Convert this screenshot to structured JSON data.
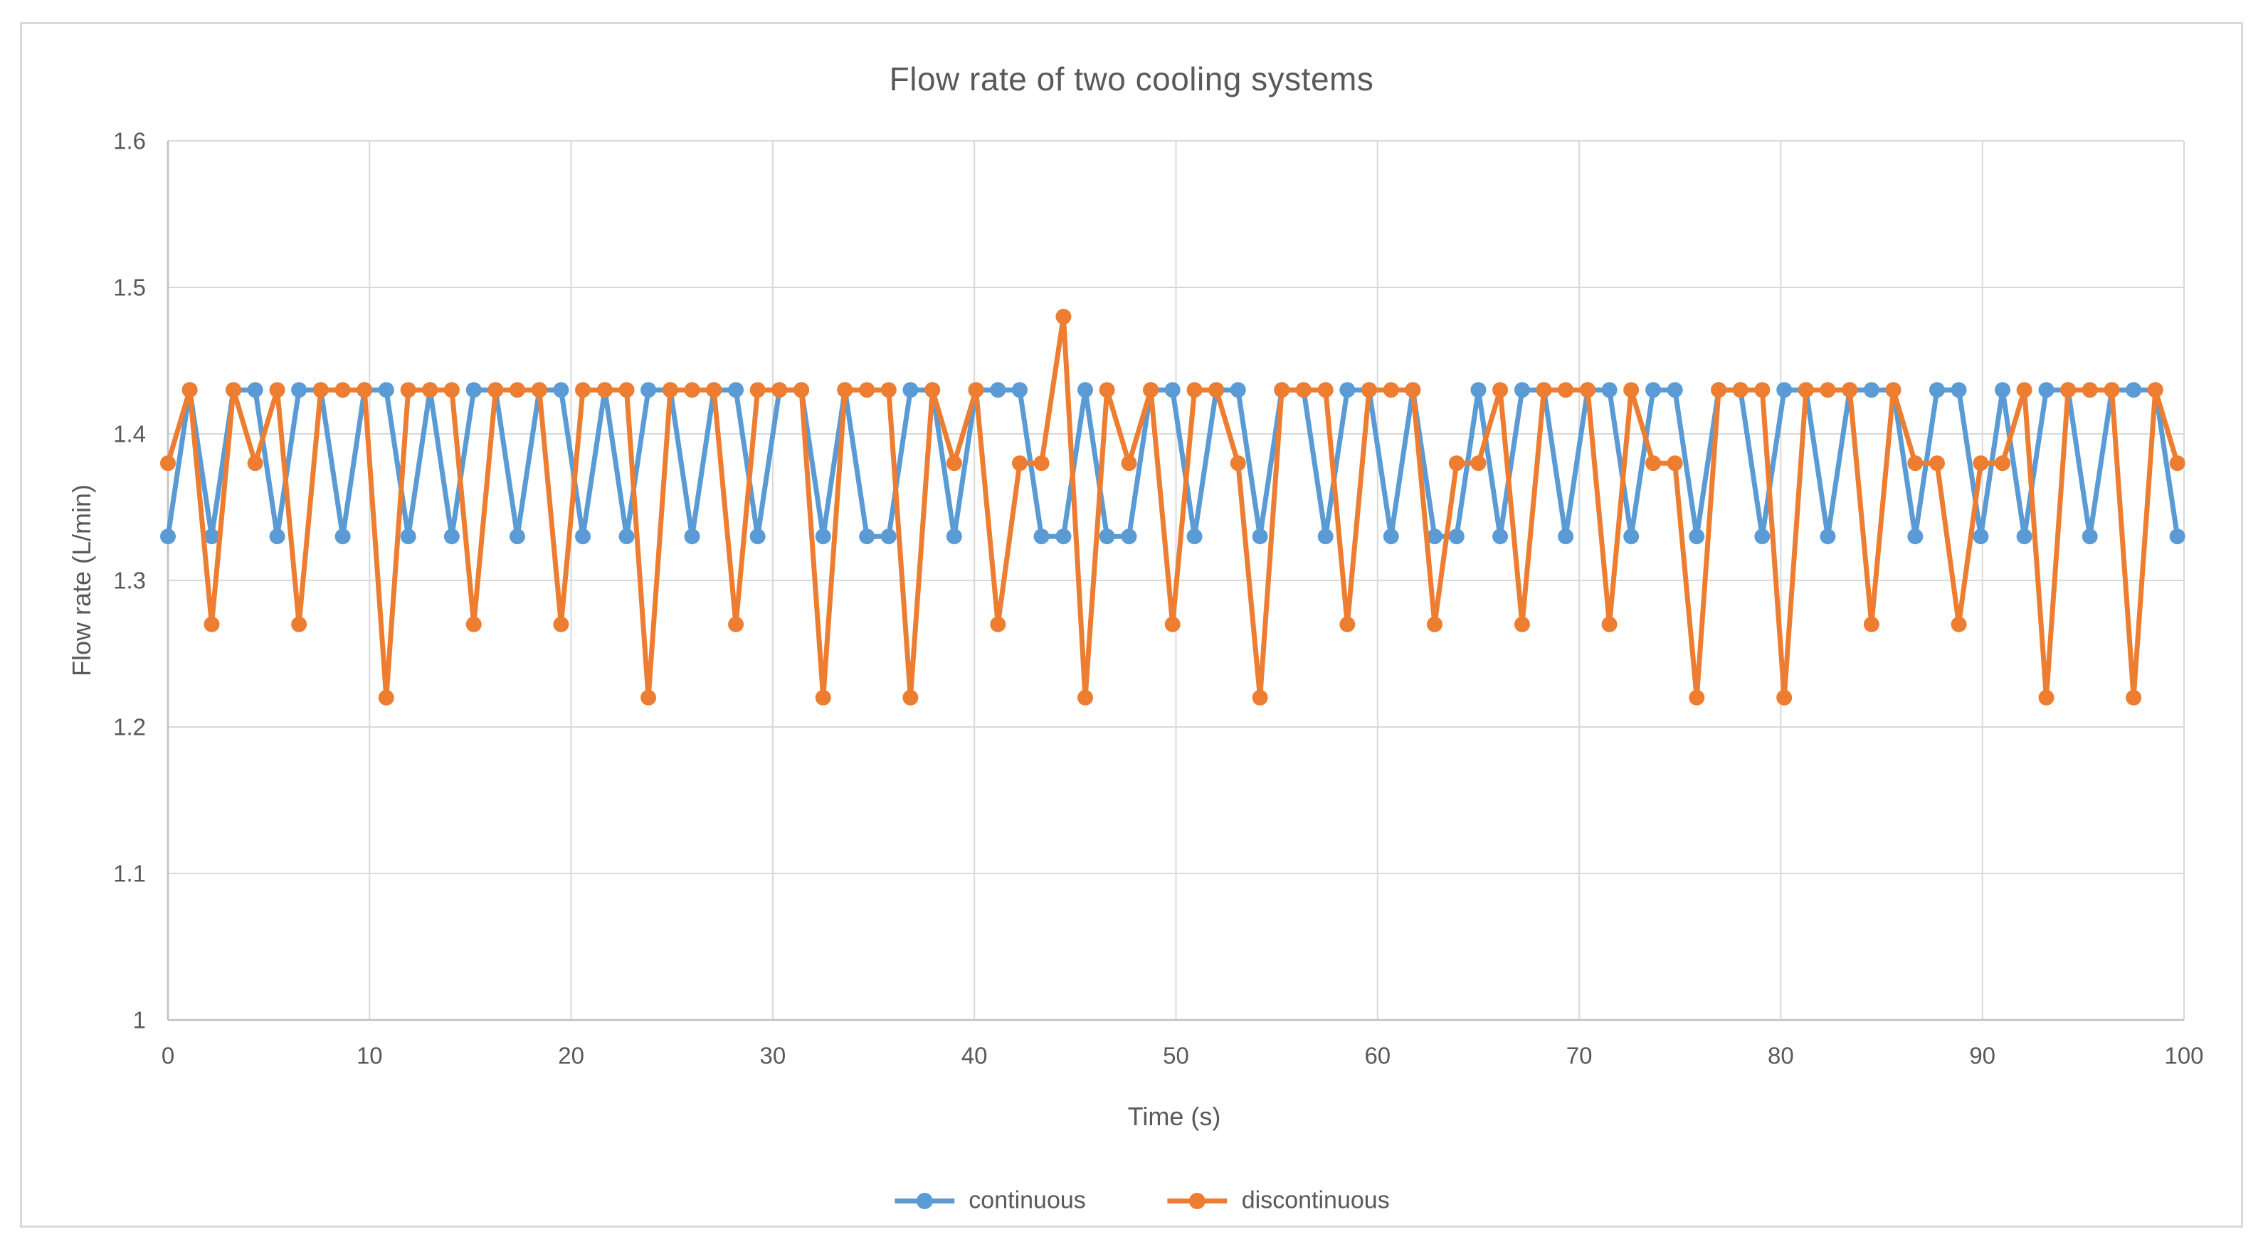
{
  "title": "Flow rate of two cooling systems",
  "colors": {
    "continuous": "#5B9BD5",
    "discontinuous": "#ED7D31",
    "text": "#595959",
    "gridline": "#D9D9D9",
    "axis": "#BFBFBF",
    "frame_border": "#D9D9D9",
    "background": "#FFFFFF"
  },
  "chart_data": {
    "type": "line",
    "title": "Flow rate of two cooling systems",
    "xlabel": "Time (s)",
    "ylabel": "Flow rate (L/min)",
    "xlim": [
      0,
      100
    ],
    "ylim": [
      1,
      1.6
    ],
    "x_ticks": [
      0,
      10,
      20,
      30,
      40,
      50,
      60,
      70,
      80,
      90,
      100
    ],
    "y_ticks": [
      1,
      1.1,
      1.2,
      1.3,
      1.4,
      1.5,
      1.6
    ],
    "y_tick_labels": [
      "1",
      "1.1",
      "1.2",
      "1.3",
      "1.4",
      "1.5",
      "1.6"
    ],
    "grid": true,
    "legend_position": "bottom",
    "marker": "circle",
    "sample_interval_s": 1.083,
    "x": [
      0,
      1.08,
      2.17,
      3.25,
      4.33,
      5.42,
      6.5,
      7.58,
      8.67,
      9.75,
      10.83,
      11.92,
      13,
      14.08,
      15.17,
      16.25,
      17.33,
      18.42,
      19.5,
      20.58,
      21.67,
      22.75,
      23.83,
      24.92,
      26,
      27.08,
      28.17,
      29.25,
      30.33,
      31.42,
      32.5,
      33.58,
      34.67,
      35.75,
      36.83,
      37.92,
      39,
      40.08,
      41.17,
      42.25,
      43.33,
      44.42,
      45.5,
      46.58,
      47.67,
      48.75,
      49.83,
      50.92,
      52,
      53.08,
      54.17,
      55.25,
      56.33,
      57.42,
      58.5,
      59.58,
      60.67,
      61.75,
      62.83,
      63.92,
      65,
      66.08,
      67.17,
      68.25,
      69.33,
      70.42,
      71.5,
      72.58,
      73.67,
      74.75,
      75.83,
      76.92,
      78,
      79.08,
      80.17,
      81.25,
      82.33,
      83.42,
      84.5,
      85.58,
      86.67,
      87.75,
      88.83,
      89.92,
      91,
      92.08,
      93.17,
      94.25,
      95.33,
      96.42,
      97.5,
      98.58,
      99.67
    ],
    "series": [
      {
        "name": "continuous",
        "color": "#5B9BD5",
        "values": [
          1.33,
          1.43,
          1.33,
          1.43,
          1.43,
          1.33,
          1.43,
          1.43,
          1.33,
          1.43,
          1.43,
          1.33,
          1.43,
          1.33,
          1.43,
          1.43,
          1.33,
          1.43,
          1.43,
          1.33,
          1.43,
          1.33,
          1.43,
          1.43,
          1.33,
          1.43,
          1.43,
          1.33,
          1.43,
          1.43,
          1.33,
          1.43,
          1.33,
          1.33,
          1.43,
          1.43,
          1.33,
          1.43,
          1.43,
          1.43,
          1.33,
          1.33,
          1.43,
          1.33,
          1.33,
          1.43,
          1.43,
          1.33,
          1.43,
          1.43,
          1.33,
          1.43,
          1.43,
          1.33,
          1.43,
          1.43,
          1.33,
          1.43,
          1.33,
          1.33,
          1.43,
          1.33,
          1.43,
          1.43,
          1.33,
          1.43,
          1.43,
          1.33,
          1.43,
          1.43,
          1.33,
          1.43,
          1.43,
          1.33,
          1.43,
          1.43,
          1.33,
          1.43,
          1.43,
          1.43,
          1.33,
          1.43,
          1.43,
          1.33,
          1.43,
          1.33,
          1.43,
          1.43,
          1.33,
          1.43,
          1.43,
          1.43,
          1.33
        ]
      },
      {
        "name": "discontinuous",
        "color": "#ED7D31",
        "values": [
          1.38,
          1.43,
          1.27,
          1.43,
          1.38,
          1.43,
          1.27,
          1.43,
          1.43,
          1.43,
          1.22,
          1.43,
          1.43,
          1.43,
          1.27,
          1.43,
          1.43,
          1.43,
          1.27,
          1.43,
          1.43,
          1.43,
          1.22,
          1.43,
          1.43,
          1.43,
          1.27,
          1.43,
          1.43,
          1.43,
          1.22,
          1.43,
          1.43,
          1.43,
          1.22,
          1.43,
          1.38,
          1.43,
          1.27,
          1.38,
          1.38,
          1.48,
          1.22,
          1.43,
          1.38,
          1.43,
          1.27,
          1.43,
          1.43,
          1.38,
          1.22,
          1.43,
          1.43,
          1.43,
          1.27,
          1.43,
          1.43,
          1.43,
          1.27,
          1.38,
          1.38,
          1.43,
          1.27,
          1.43,
          1.43,
          1.43,
          1.27,
          1.43,
          1.38,
          1.38,
          1.22,
          1.43,
          1.43,
          1.43,
          1.22,
          1.43,
          1.43,
          1.43,
          1.27,
          1.43,
          1.38,
          1.38,
          1.27,
          1.38,
          1.38,
          1.43,
          1.22,
          1.43,
          1.43,
          1.43,
          1.22,
          1.43,
          1.38
        ]
      }
    ]
  },
  "legend": {
    "items": [
      {
        "label": "continuous"
      },
      {
        "label": "discontinuous"
      }
    ]
  }
}
